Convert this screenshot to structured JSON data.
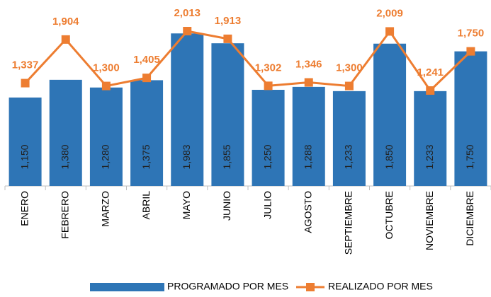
{
  "chart_data": {
    "type": "bar-line",
    "categories": [
      "ENERO",
      "FEBRERO",
      "MARZO",
      "ABRIL",
      "MAYO",
      "JUNIO",
      "JULIO",
      "AGOSTO",
      "SEPTIEMBRE",
      "OCTUBRE",
      "NOVIEMBRE",
      "DICIEMBRE"
    ],
    "series": [
      {
        "name": "PROGRAMADO POR MES",
        "type": "bar",
        "color": "#2e75b6",
        "values": [
          1150,
          1380,
          1280,
          1375,
          1983,
          1855,
          1250,
          1288,
          1233,
          1850,
          1233,
          1750
        ],
        "value_labels": [
          "1,150",
          "1,380",
          "1,280",
          "1,375",
          "1,983",
          "1,855",
          "1,250",
          "1,288",
          "1,233",
          "1,850",
          "1,233",
          "1,750"
        ]
      },
      {
        "name": "REALIZADO POR MES",
        "type": "line",
        "color": "#ed7d31",
        "values": [
          1337,
          1904,
          1300,
          1405,
          2013,
          1913,
          1302,
          1346,
          1300,
          2009,
          1241,
          1750
        ],
        "value_labels": [
          "1,337",
          "1,904",
          "1,300",
          "1,405",
          "2,013",
          "1,913",
          "1,302",
          "1,346",
          "1,300",
          "2,009",
          "1,241",
          "1,750"
        ]
      }
    ],
    "legend": "bottom"
  }
}
